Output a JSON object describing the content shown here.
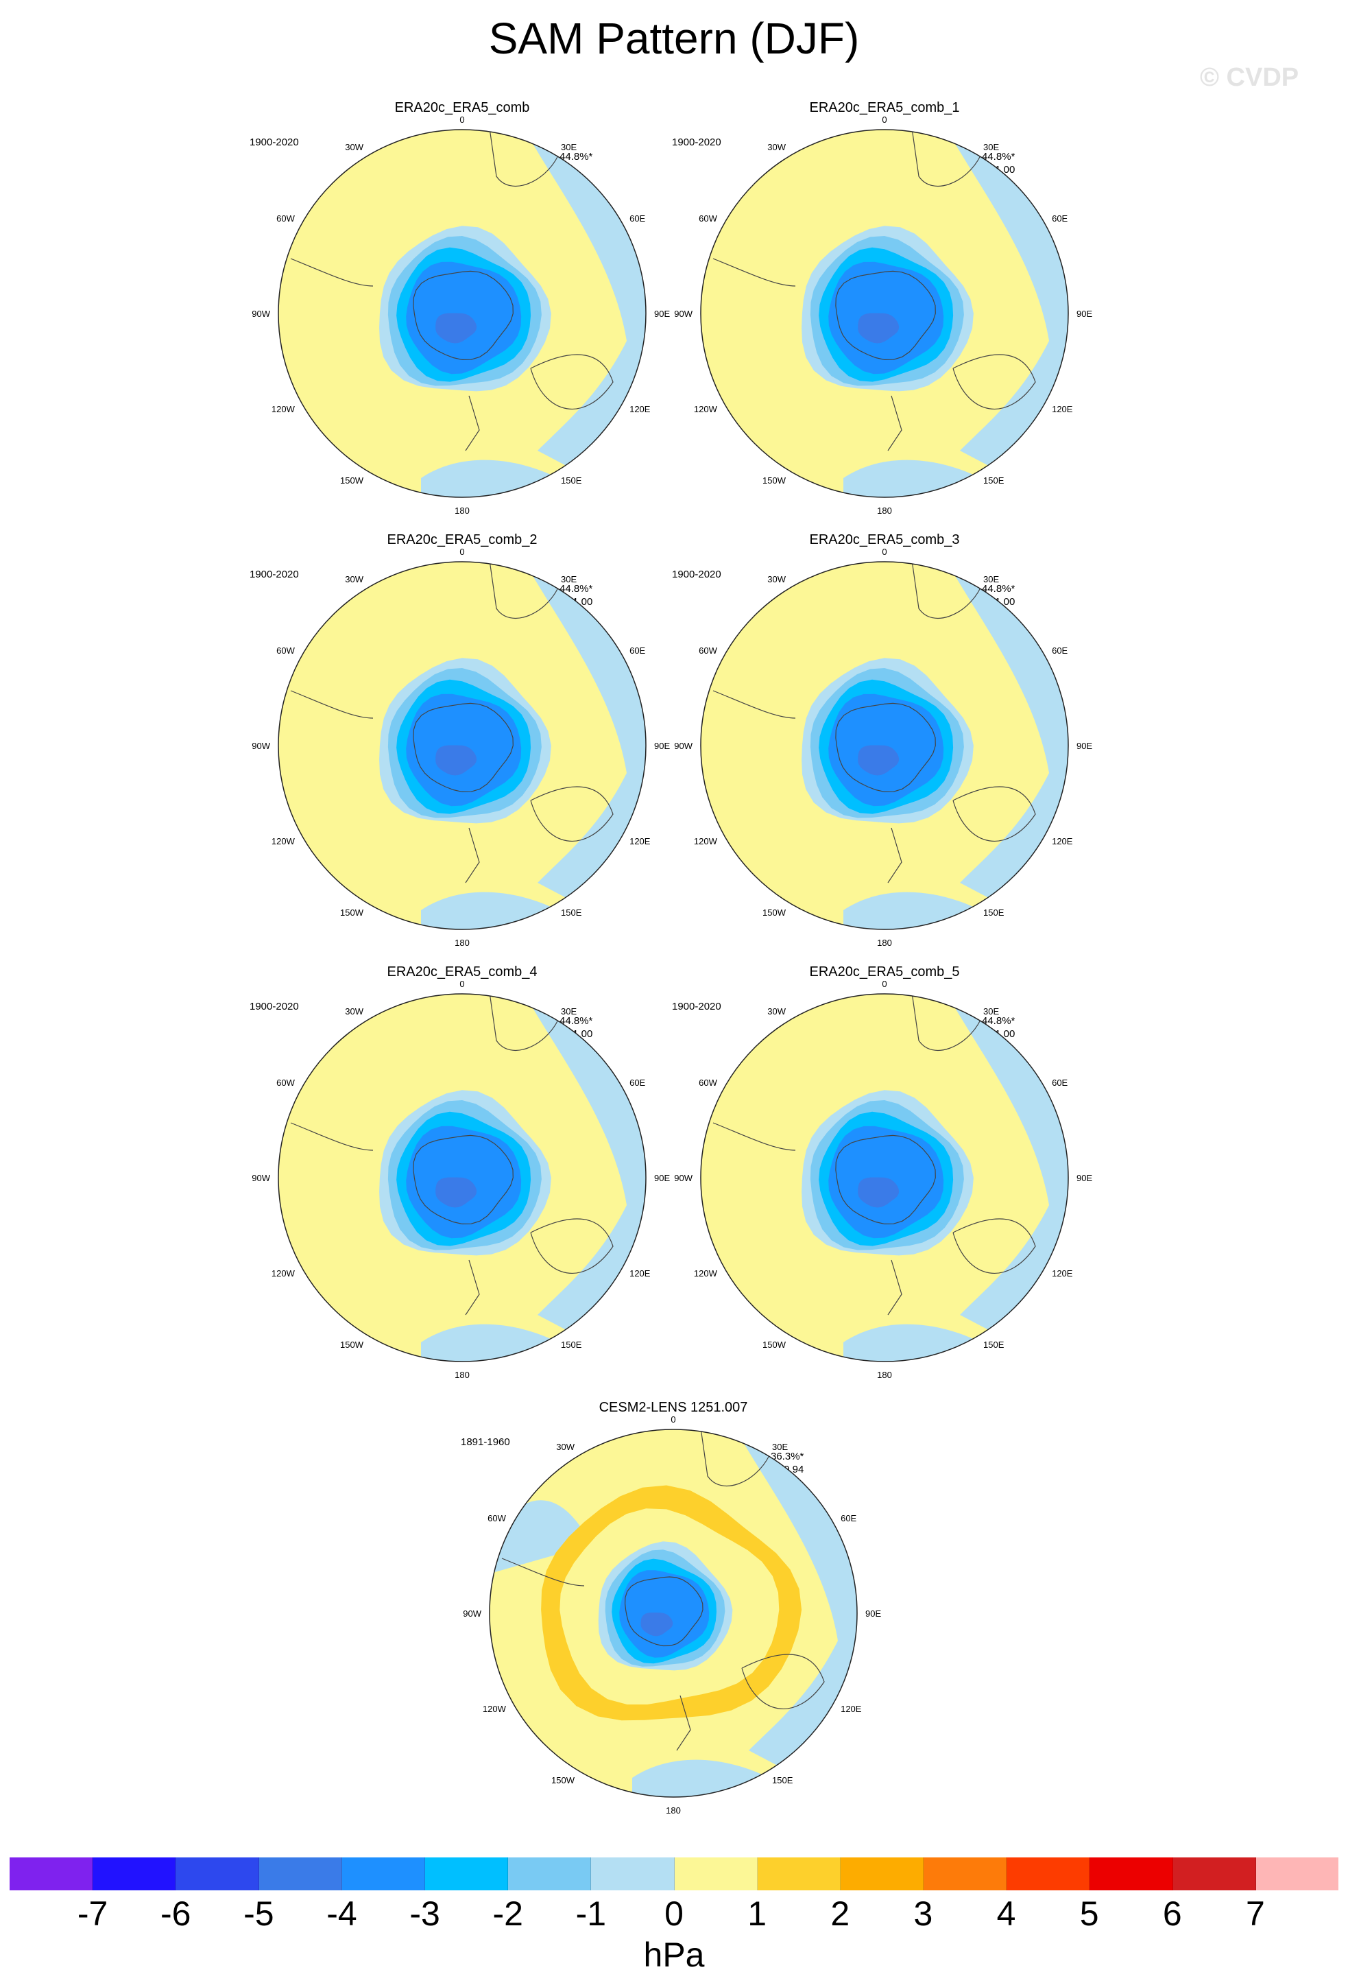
{
  "figure": {
    "title": "SAM Pattern (DJF)",
    "watermark": "© CVDP"
  },
  "map_labels": {
    "top": "0",
    "bottom": "180",
    "left": "90W",
    "right": "90E",
    "nw1": "30W",
    "nw2": "60W",
    "sw1": "120W",
    "sw2": "150W",
    "ne1": "30E",
    "ne2": "60E",
    "se1": "120E",
    "se2": "150E"
  },
  "panels": [
    {
      "title": "ERA20c_ERA5_comb",
      "period": "1900-2020",
      "pct": "44.8%*",
      "r": ""
    },
    {
      "title": "ERA20c_ERA5_comb_1",
      "period": "1900-2020",
      "pct": "44.8%*",
      "r": "r=1.00"
    },
    {
      "title": "ERA20c_ERA5_comb_2",
      "period": "1900-2020",
      "pct": "44.8%*",
      "r": "r=1.00"
    },
    {
      "title": "ERA20c_ERA5_comb_3",
      "period": "1900-2020",
      "pct": "44.8%*",
      "r": "r=1.00"
    },
    {
      "title": "ERA20c_ERA5_comb_4",
      "period": "1900-2020",
      "pct": "44.8%*",
      "r": "r=1.00"
    },
    {
      "title": "ERA20c_ERA5_comb_5",
      "period": "1900-2020",
      "pct": "44.8%*",
      "r": "r=1.00"
    },
    {
      "title": "CESM2-LENS 1251.007",
      "period": "1891-1960",
      "pct": "36.3%*",
      "r": "r=0.94"
    }
  ],
  "colorbar": {
    "colors": [
      "#7f22ee",
      "#2112ff",
      "#2d48ee",
      "#3a7be8",
      "#1e90ff",
      "#00bfff",
      "#79caf3",
      "#b4dff3",
      "#fcf796",
      "#fdd02c",
      "#fdac00",
      "#fd7b0a",
      "#fd3c00",
      "#ec0000",
      "#d21f21",
      "#feb6b6"
    ],
    "ticks": [
      "-7",
      "-6",
      "-5",
      "-4",
      "-3",
      "-2",
      "-1",
      "0",
      "1",
      "2",
      "3",
      "4",
      "5",
      "6",
      "7"
    ],
    "units": "hPa"
  }
}
